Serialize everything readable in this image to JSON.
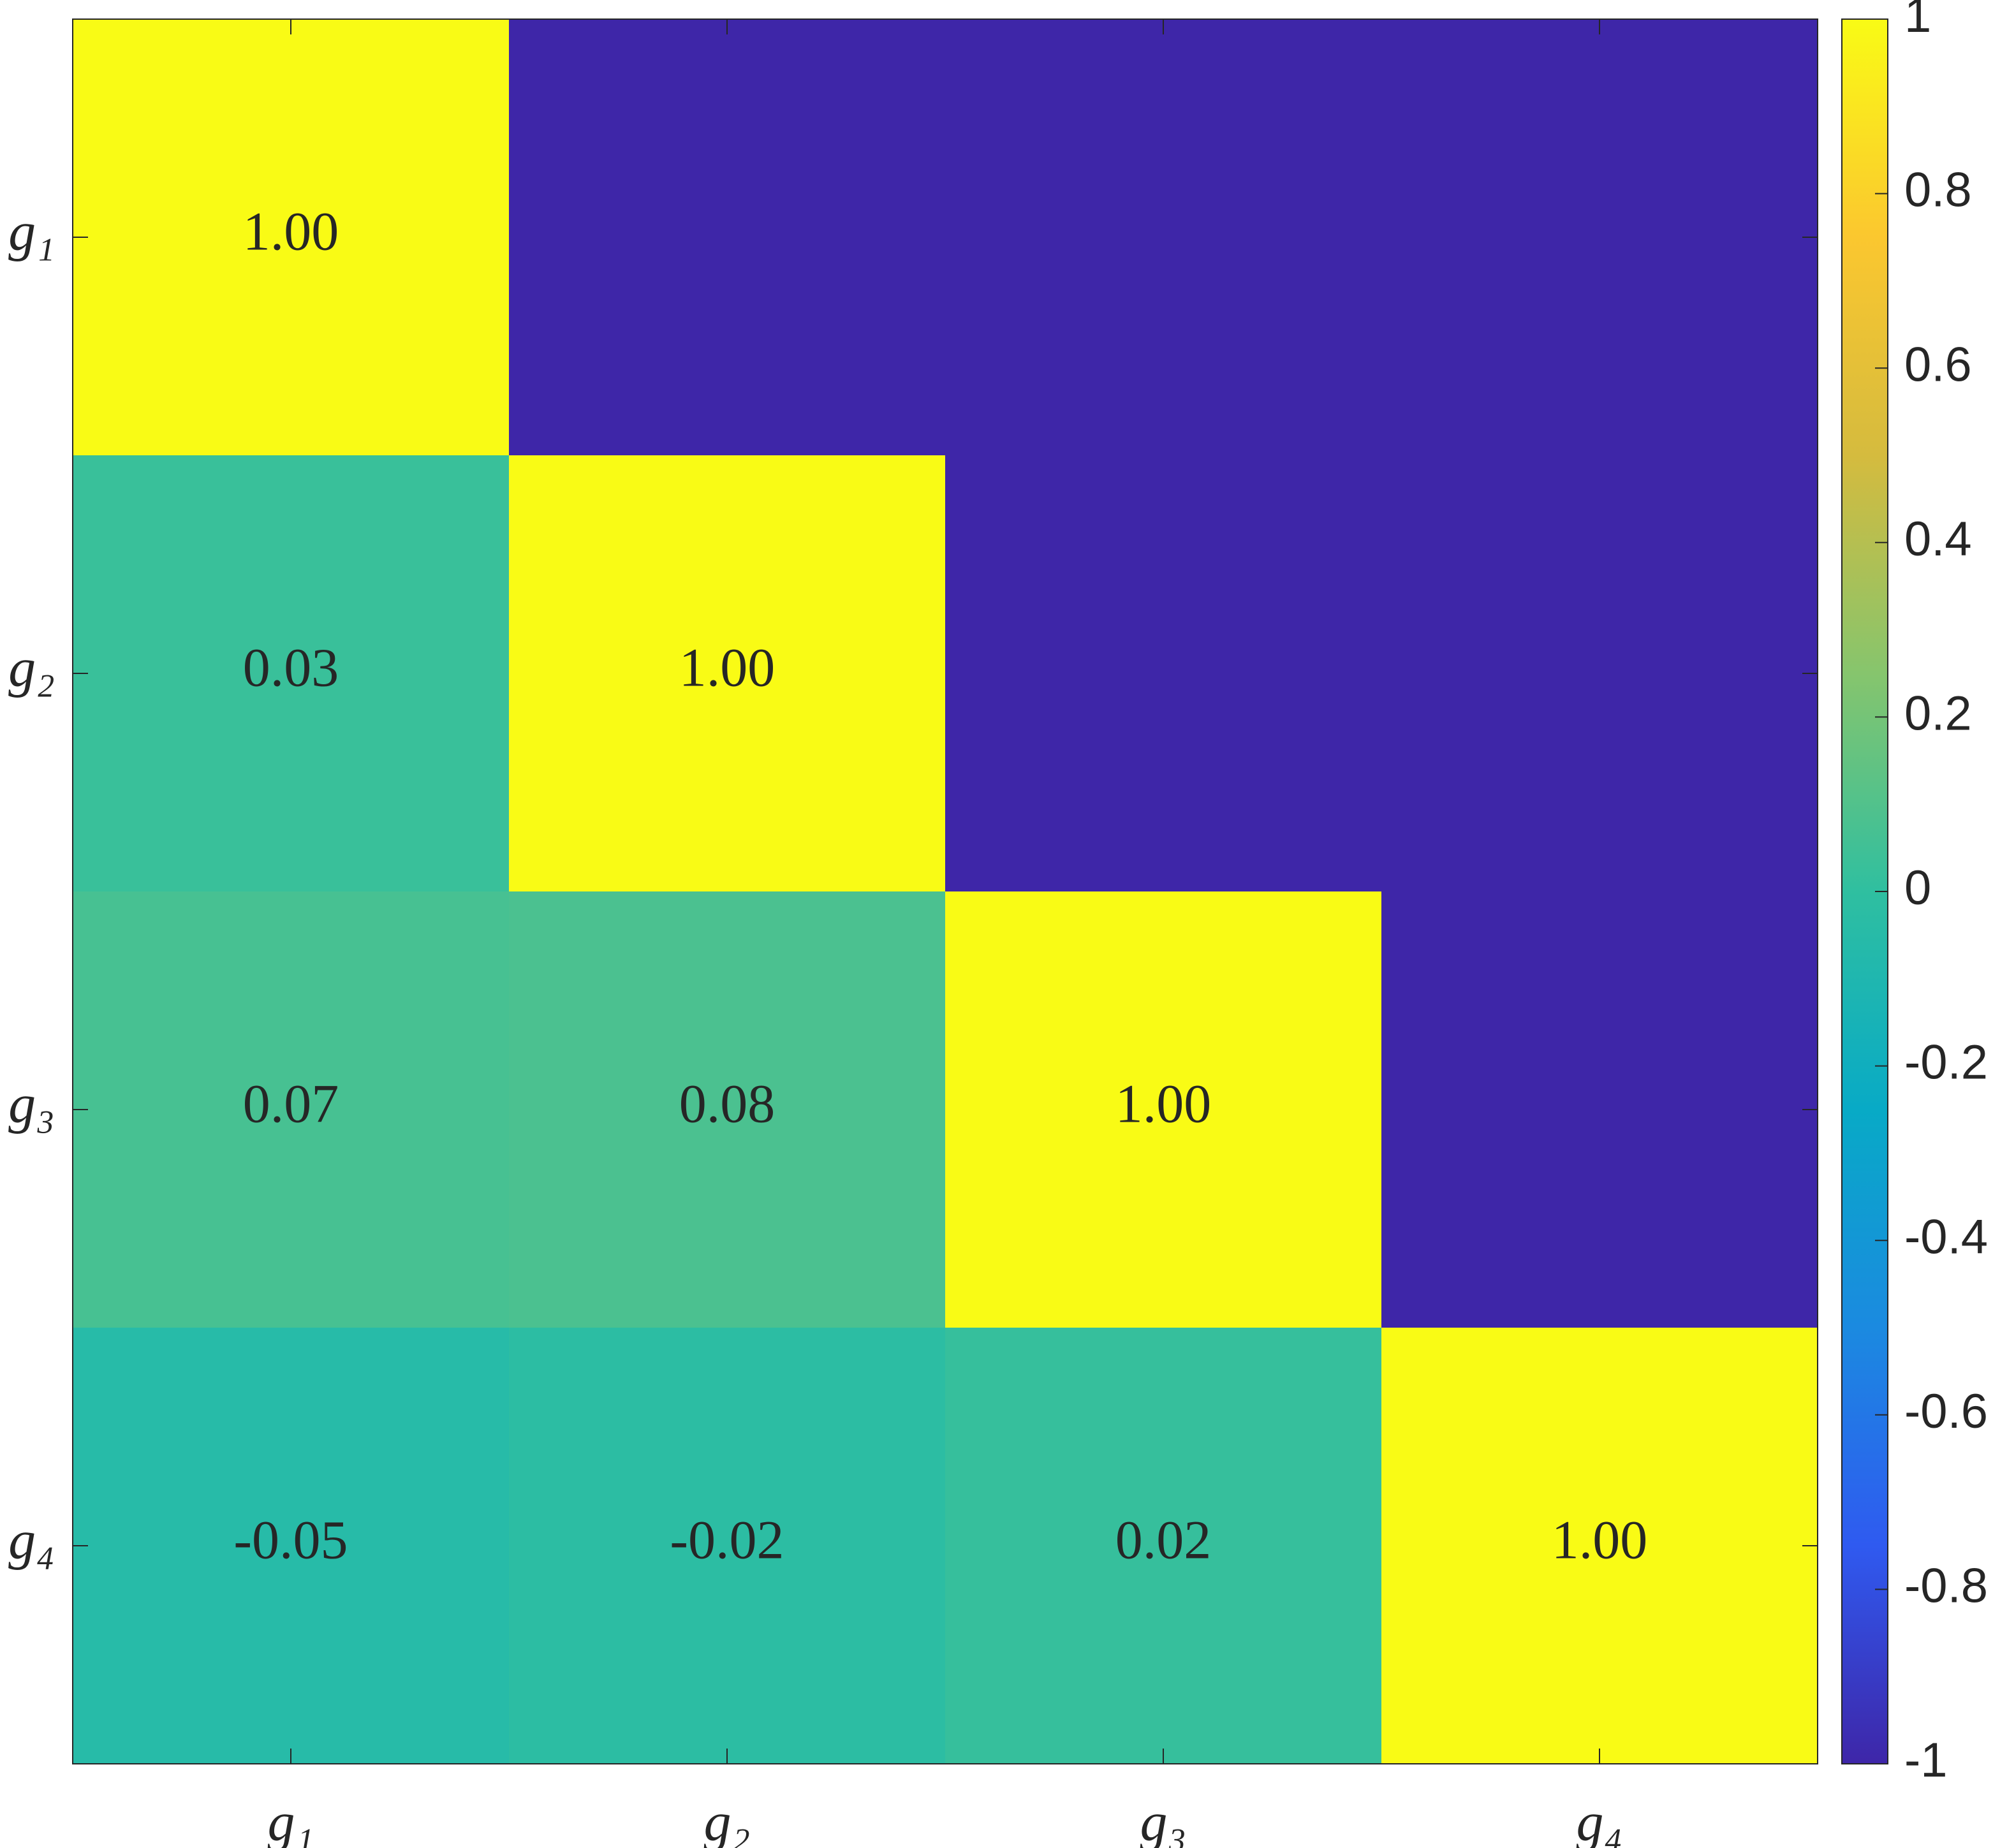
{
  "chart_data": {
    "type": "heatmap",
    "x": [
      "g₁",
      "g₂",
      "g₃",
      "g₄"
    ],
    "y": [
      "g₁",
      "g₂",
      "g₃",
      "g₄"
    ],
    "values": [
      [
        1,
        -1,
        -1,
        -1
      ],
      [
        0.03,
        1,
        -1,
        -1
      ],
      [
        0.07,
        0.08,
        1,
        -1
      ],
      [
        -0.05,
        -0.02,
        0.02,
        1
      ]
    ],
    "value_labels": [
      [
        "1.00",
        null,
        null,
        null
      ],
      [
        "0.03",
        "1.00",
        null,
        null
      ],
      [
        "0.07",
        "0.08",
        "1.00",
        null
      ],
      [
        "-0.05",
        "-0.02",
        "0.02",
        "1.00"
      ]
    ],
    "clim": [
      -1,
      1
    ],
    "cticks": [
      -1,
      -0.8,
      -0.6,
      -0.4,
      -0.2,
      0,
      0.2,
      0.4,
      0.6,
      0.8,
      1
    ],
    "colormap": [
      "#3e26a8",
      "#2f5af0",
      "#1b8ae0",
      "#08aac6",
      "#2fbfa0",
      "#86c56d",
      "#d5bb3e",
      "#fbc72f",
      "#f9fb15"
    ]
  }
}
